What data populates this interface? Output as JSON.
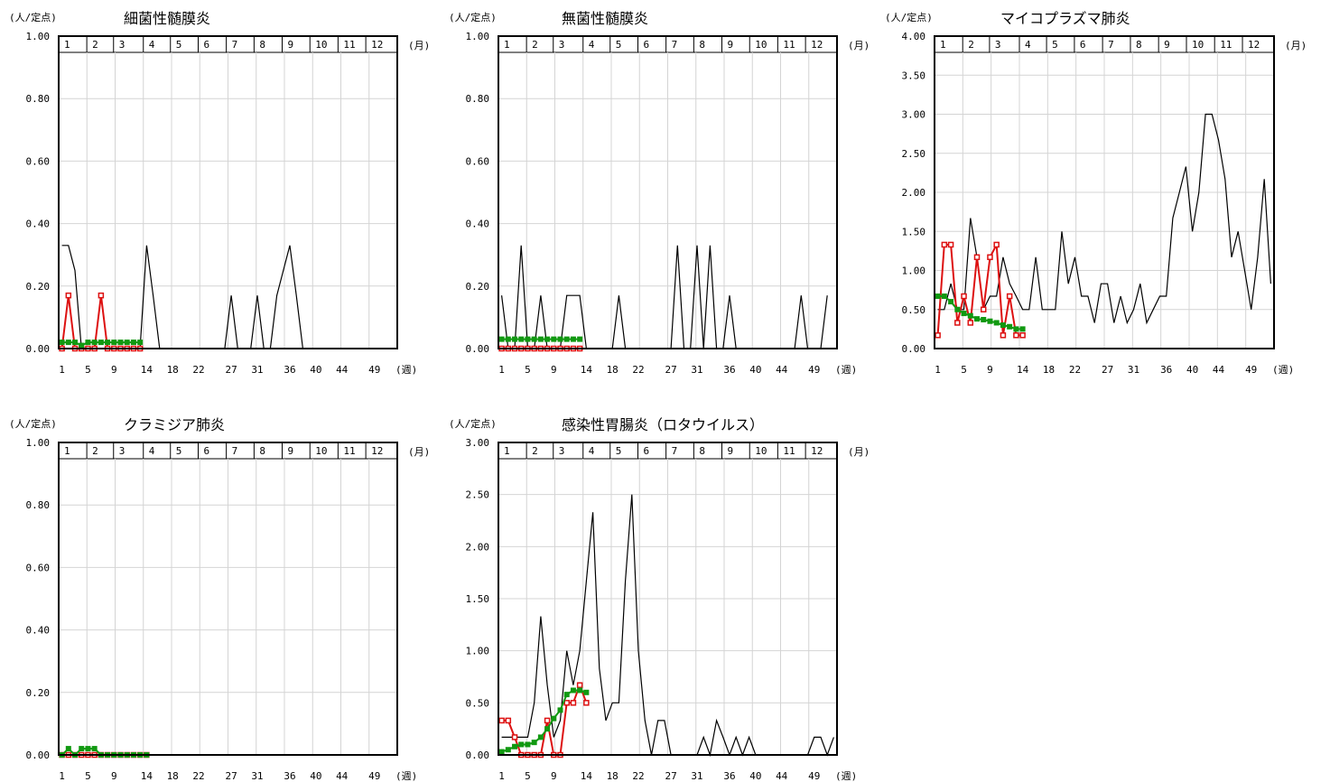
{
  "common": {
    "y_unit": "(人/定点)",
    "x_unit": "(週)",
    "month_unit": "(月)",
    "months": [
      "1",
      "2",
      "3",
      "4",
      "5",
      "6",
      "7",
      "8",
      "9",
      "10",
      "11",
      "12"
    ],
    "week_ticks": [
      "1",
      "5",
      "9",
      "14",
      "18",
      "22",
      "27",
      "31",
      "36",
      "40",
      "44",
      "49"
    ],
    "colors": {
      "prev_year": "#000000",
      "current_year": "#dd1111",
      "five_year_avg": "#119911",
      "grid": "#d4d4d4"
    }
  },
  "chart_data": [
    {
      "type": "line",
      "title": "細菌性髄膜炎",
      "ylim": [
        0,
        1.0
      ],
      "y_ticks": [
        "0.00",
        "0.20",
        "0.40",
        "0.60",
        "0.80",
        "1.00"
      ],
      "series": [
        {
          "values": [
            0.33,
            0.33,
            0.25,
            0,
            0,
            0,
            0,
            0,
            0,
            0,
            0,
            0,
            0,
            0.33,
            0.17,
            0,
            0,
            0,
            0,
            0,
            0,
            0,
            0,
            0,
            0,
            0,
            0.17,
            0,
            0,
            0,
            0.17,
            0,
            0,
            0.17,
            0.25,
            0.33,
            0.17,
            0,
            0,
            0,
            0,
            0,
            0,
            0,
            0,
            0,
            0,
            0,
            0,
            0,
            0,
            0
          ]
        },
        {
          "values": [
            0,
            0.17,
            0,
            0,
            0,
            0,
            0.17,
            0,
            0,
            0,
            0,
            0,
            0
          ]
        },
        {
          "values": [
            0.02,
            0.02,
            0.02,
            0.01,
            0.02,
            0.02,
            0.02,
            0.02,
            0.02,
            0.02,
            0.02,
            0.02,
            0.02
          ]
        }
      ]
    },
    {
      "type": "line",
      "title": "無菌性髄膜炎",
      "ylim": [
        0,
        1.0
      ],
      "y_ticks": [
        "0.00",
        "0.20",
        "0.40",
        "0.60",
        "0.80",
        "1.00"
      ],
      "series": [
        {
          "values": [
            0.17,
            0,
            0,
            0.33,
            0,
            0,
            0.17,
            0,
            0,
            0,
            0.17,
            0.17,
            0.17,
            0,
            0,
            0,
            0,
            0,
            0.17,
            0,
            0,
            0,
            0,
            0,
            0,
            0,
            0,
            0.33,
            0,
            0,
            0.33,
            0,
            0.33,
            0,
            0,
            0.17,
            0,
            0,
            0,
            0,
            0,
            0,
            0,
            0,
            0,
            0,
            0.17,
            0,
            0,
            0,
            0.17
          ]
        },
        {
          "values": [
            0,
            0,
            0,
            0,
            0,
            0,
            0,
            0,
            0,
            0,
            0,
            0,
            0
          ]
        },
        {
          "values": [
            0.03,
            0.03,
            0.03,
            0.03,
            0.03,
            0.03,
            0.03,
            0.03,
            0.03,
            0.03,
            0.03,
            0.03,
            0.03
          ]
        }
      ]
    },
    {
      "type": "line",
      "title": "マイコプラズマ肺炎",
      "ylim": [
        0,
        4.0
      ],
      "y_ticks": [
        "0.00",
        "0.50",
        "1.00",
        "1.50",
        "2.00",
        "2.50",
        "3.00",
        "3.50",
        "4.00"
      ],
      "series": [
        {
          "values": [
            0.5,
            0.5,
            0.83,
            0.5,
            0.5,
            1.67,
            1.17,
            0.5,
            0.67,
            0.67,
            1.17,
            0.83,
            0.67,
            0.5,
            0.5,
            1.17,
            0.5,
            0.5,
            0.5,
            1.5,
            0.83,
            1.17,
            0.67,
            0.67,
            0.33,
            0.83,
            0.83,
            0.33,
            0.67,
            0.33,
            0.5,
            0.83,
            0.33,
            0.5,
            0.67,
            0.67,
            1.67,
            2.0,
            2.33,
            1.5,
            2.0,
            3.0,
            3.0,
            2.67,
            2.17,
            1.17,
            1.5,
            1.0,
            0.5,
            1.17,
            2.17,
            0.83
          ]
        },
        {
          "values": [
            0.17,
            1.33,
            1.33,
            0.33,
            0.67,
            0.33,
            1.17,
            0.5,
            1.17,
            1.33,
            0.17,
            0.67,
            0.17,
            0.17
          ]
        },
        {
          "values": [
            0.67,
            0.67,
            0.6,
            0.5,
            0.45,
            0.42,
            0.38,
            0.37,
            0.35,
            0.33,
            0.3,
            0.28,
            0.25,
            0.25
          ]
        }
      ]
    },
    {
      "type": "line",
      "title": "クラミジア肺炎",
      "ylim": [
        0,
        1.0
      ],
      "y_ticks": [
        "0.00",
        "0.20",
        "0.40",
        "0.60",
        "0.80",
        "1.00"
      ],
      "series": [
        {
          "values": [
            0,
            0,
            0,
            0,
            0,
            0,
            0,
            0,
            0,
            0,
            0,
            0,
            0,
            0,
            0,
            0,
            0,
            0,
            0,
            0,
            0,
            0,
            0,
            0,
            0,
            0,
            0,
            0,
            0,
            0,
            0,
            0,
            0,
            0,
            0,
            0,
            0,
            0,
            0,
            0,
            0,
            0,
            0,
            0,
            0,
            0,
            0,
            0,
            0,
            0,
            0,
            0
          ]
        },
        {
          "values": [
            0,
            0,
            0,
            0,
            0,
            0,
            0,
            0,
            0,
            0,
            0,
            0,
            0,
            0
          ]
        },
        {
          "values": [
            0,
            0.02,
            0,
            0.02,
            0.02,
            0.02,
            0,
            0,
            0,
            0,
            0,
            0,
            0,
            0
          ]
        }
      ]
    },
    {
      "type": "line",
      "title": "感染性胃腸炎（ロタウイルス）",
      "ylim": [
        0,
        3.0
      ],
      "y_ticks": [
        "0.00",
        "0.50",
        "1.00",
        "1.50",
        "2.00",
        "2.50",
        "3.00"
      ],
      "series": [
        {
          "values": [
            0.17,
            0.17,
            0.17,
            0.17,
            0.17,
            0.5,
            1.33,
            0.67,
            0.17,
            0.33,
            1.0,
            0.67,
            1.0,
            1.67,
            2.33,
            0.83,
            0.33,
            0.5,
            0.5,
            1.67,
            2.5,
            1.0,
            0.33,
            0,
            0.33,
            0.33,
            0,
            0,
            0,
            0,
            0,
            0.17,
            0,
            0.33,
            0.17,
            0,
            0.17,
            0,
            0.17,
            0,
            0,
            0,
            0,
            0,
            0,
            0,
            0,
            0,
            0.17,
            0.17,
            0,
            0.17
          ]
        },
        {
          "values": [
            0.33,
            0.33,
            0.17,
            0,
            0,
            0,
            0,
            0.33,
            0,
            0,
            0.5,
            0.5,
            0.67,
            0.5
          ]
        },
        {
          "values": [
            0.03,
            0.05,
            0.08,
            0.1,
            0.1,
            0.12,
            0.17,
            0.25,
            0.35,
            0.43,
            0.58,
            0.62,
            0.62,
            0.6
          ]
        }
      ]
    }
  ]
}
